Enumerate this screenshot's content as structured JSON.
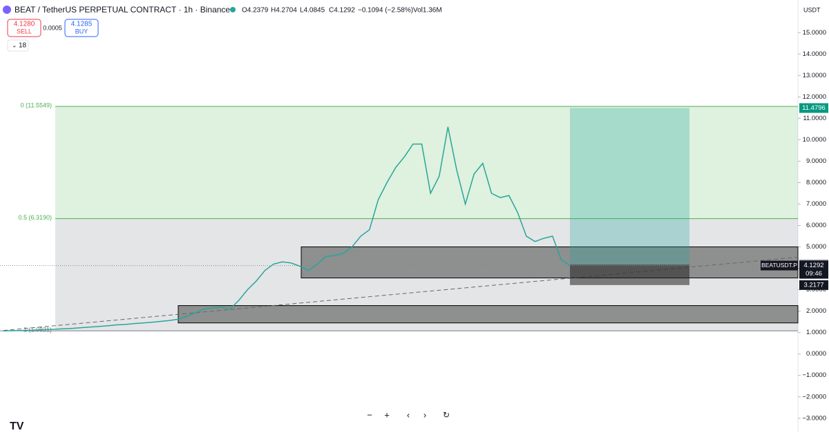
{
  "header": {
    "symbol": "BEAT / TetherUS PERPETUAL CONTRACT · 1h · Binance",
    "open": "O4.2379",
    "high": "H4.2704",
    "low": "L4.0845",
    "close": "C4.1292",
    "change": "−0.1094 (−2.58%)",
    "volume": "Vol1.36M",
    "sell_price": "4.1280",
    "sell_label": "SELL",
    "spread": "0.0005",
    "buy_price": "4.1285",
    "buy_label": "BUY",
    "indicators": "18"
  },
  "chart_data": {
    "type": "line",
    "currency": "USDT",
    "series": [
      {
        "name": "BEATUSDT.P",
        "color": "#26a69a",
        "values": [
          1.08,
          1.09,
          1.1,
          1.11,
          1.12,
          1.14,
          1.16,
          1.18,
          1.2,
          1.23,
          1.26,
          1.29,
          1.32,
          1.36,
          1.38,
          1.42,
          1.45,
          1.48,
          1.52,
          1.56,
          1.62,
          1.75,
          1.92,
          2.1,
          2.15,
          2.18,
          2.1,
          2.5,
          3.0,
          3.4,
          3.9,
          4.2,
          4.3,
          4.25,
          4.1,
          3.9,
          4.2,
          4.55,
          4.6,
          4.7,
          5.0,
          5.5,
          5.8,
          7.2,
          8.0,
          8.7,
          9.2,
          9.8,
          9.8,
          7.5,
          8.3,
          10.6,
          8.6,
          7.0,
          8.4,
          8.9,
          7.5,
          7.3,
          7.4,
          6.6,
          5.5,
          5.25,
          5.4,
          5.5,
          4.4,
          4.13
        ]
      }
    ],
    "ylim": [
      -3.2,
      16.2
    ],
    "yticks": [
      {
        "value": 15,
        "label": "15.0000"
      },
      {
        "value": 14,
        "label": "14.0000"
      },
      {
        "value": 13,
        "label": "13.0000"
      },
      {
        "value": 12,
        "label": "12.0000"
      },
      {
        "value": 11,
        "label": "11.0000"
      },
      {
        "value": 10,
        "label": "10.0000"
      },
      {
        "value": 9,
        "label": "9.0000"
      },
      {
        "value": 8,
        "label": "8.0000"
      },
      {
        "value": 7,
        "label": "7.0000"
      },
      {
        "value": 6,
        "label": "6.0000"
      },
      {
        "value": 5,
        "label": "5.0000"
      },
      {
        "value": 4,
        "label": "4.0000"
      },
      {
        "value": 3,
        "label": "3.0000"
      },
      {
        "value": 2,
        "label": "2.0000"
      },
      {
        "value": 1,
        "label": "1.0000"
      },
      {
        "value": 0,
        "label": "0.0000"
      },
      {
        "value": -1,
        "label": "−1.0000"
      },
      {
        "value": -2,
        "label": "−2.0000"
      },
      {
        "value": -3,
        "label": "−3.0000"
      }
    ],
    "fib_levels": [
      {
        "label": "0 (11.5549)",
        "value": 11.5549,
        "color": "#4caf50"
      },
      {
        "label": "0.5 (6.3190)",
        "value": 6.319,
        "color": "#4caf50"
      },
      {
        "label": "1 (1.0831)",
        "value": 1.0831,
        "color": "#787b86"
      }
    ],
    "boxes": [
      {
        "top": 5.0,
        "bottom": 3.55
      },
      {
        "top": 2.26,
        "bottom": 1.45
      }
    ],
    "trend_line": [
      1.1,
      4.52
    ],
    "position": {
      "target": 11.4796,
      "entry": 4.1719,
      "stop": 3.2177
    },
    "last_price": 4.1292,
    "countdown": "09:46"
  }
}
